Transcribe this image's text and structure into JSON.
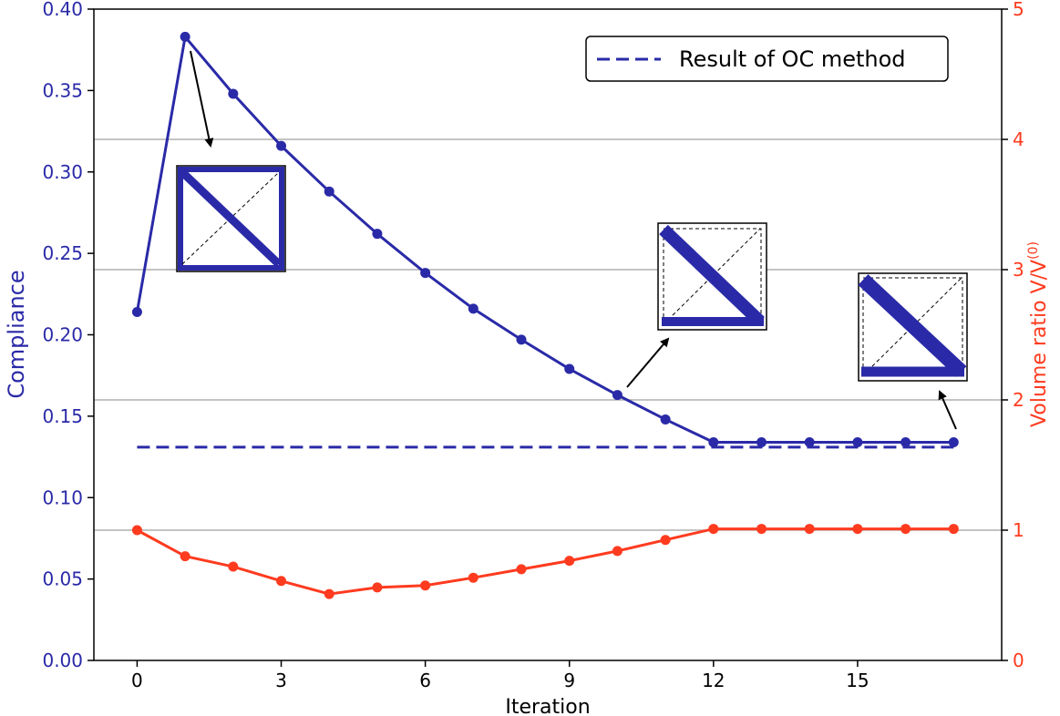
{
  "chart_data": {
    "type": "line",
    "xlabel": "Iteration",
    "ylabel_left": "Compliance",
    "ylabel_right": "Volume ratio V/V",
    "ylabel_right_superscript": "(0)",
    "xlim": [
      -0.9,
      18
    ],
    "ylim_left": [
      0,
      0.4
    ],
    "ylim_right": [
      0,
      5
    ],
    "x_ticks": [
      0,
      3,
      6,
      9,
      12,
      15
    ],
    "x_tick_labels": [
      "0",
      "3",
      "6",
      "9",
      "12",
      "15"
    ],
    "y_left_ticks": [
      0,
      0.05,
      0.1,
      0.15,
      0.2,
      0.25,
      0.3,
      0.35,
      0.4
    ],
    "y_left_tick_labels": [
      "0.00",
      "0.05",
      "0.10",
      "0.15",
      "0.20",
      "0.25",
      "0.30",
      "0.35",
      "0.40"
    ],
    "y_right_ticks": [
      0,
      1,
      2,
      3,
      4,
      5
    ],
    "y_right_tick_labels": [
      "0",
      "1",
      "2",
      "3",
      "4",
      "5"
    ],
    "right_gridlines": [
      1,
      2,
      3,
      4
    ],
    "legend": {
      "placement": "top-right",
      "entries": [
        "Result of OC method"
      ]
    },
    "series": [
      {
        "axis": "left",
        "color": "#2a2aa8",
        "style": "solid-markers",
        "x": [
          0,
          1,
          2,
          3,
          4,
          5,
          6,
          7,
          8,
          9,
          10,
          11,
          12,
          13,
          14,
          15,
          16,
          17
        ],
        "values": [
          0.214,
          0.383,
          0.348,
          0.316,
          0.288,
          0.262,
          0.238,
          0.216,
          0.197,
          0.179,
          0.163,
          0.148,
          0.134,
          0.134,
          0.134,
          0.134,
          0.134,
          0.134
        ]
      },
      {
        "axis": "right",
        "color": "#ff3b1f",
        "style": "solid-markers",
        "x": [
          0,
          1,
          2,
          3,
          4,
          5,
          6,
          7,
          8,
          9,
          10,
          11,
          12,
          13,
          14,
          15,
          16,
          17
        ],
        "values": [
          1.0,
          0.8,
          0.72,
          0.61,
          0.51,
          0.56,
          0.575,
          0.635,
          0.7,
          0.765,
          0.84,
          0.925,
          1.01,
          1.01,
          1.01,
          1.01,
          1.01,
          1.01
        ]
      },
      {
        "axis": "left",
        "name": "Result of OC method",
        "color": "#2a2aa8",
        "style": "dashed",
        "x": [
          0,
          17
        ],
        "values": [
          0.131,
          0.131
        ]
      }
    ]
  },
  "colors": {
    "compliance": "#2a2aa8",
    "volume": "#ff3b1f",
    "grid": "#b0b0b0"
  }
}
